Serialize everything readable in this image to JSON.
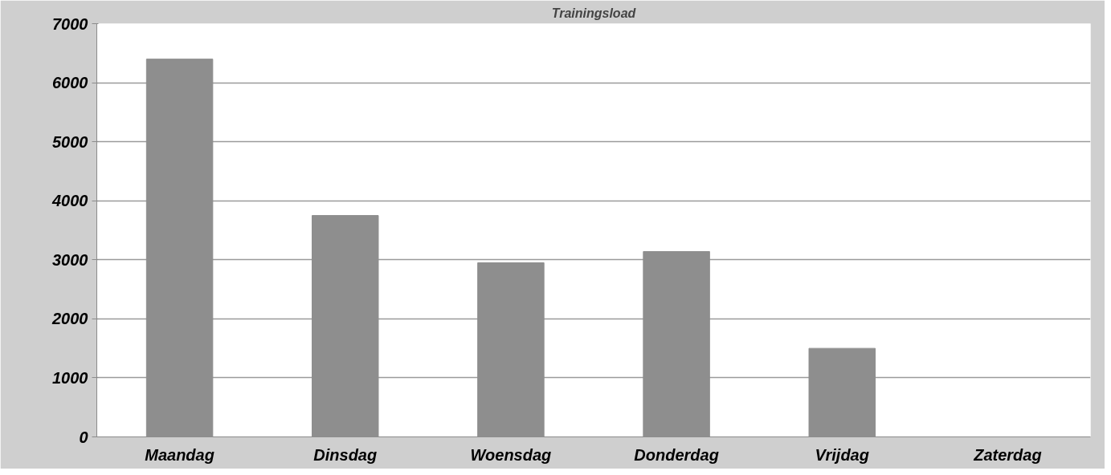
{
  "chart_data": {
    "type": "bar",
    "title": "Trainingsload",
    "categories": [
      "Maandag",
      "Dinsdag",
      "Woensdag",
      "Donderdag",
      "Vrijdag",
      "Zaterdag"
    ],
    "values": [
      6400,
      3750,
      2950,
      3140,
      1500,
      0
    ],
    "color": "#8e8e8e",
    "ylim": [
      0,
      7000
    ],
    "yticks": [
      0,
      1000,
      2000,
      3000,
      4000,
      5000,
      6000,
      7000
    ],
    "grid": "y"
  }
}
